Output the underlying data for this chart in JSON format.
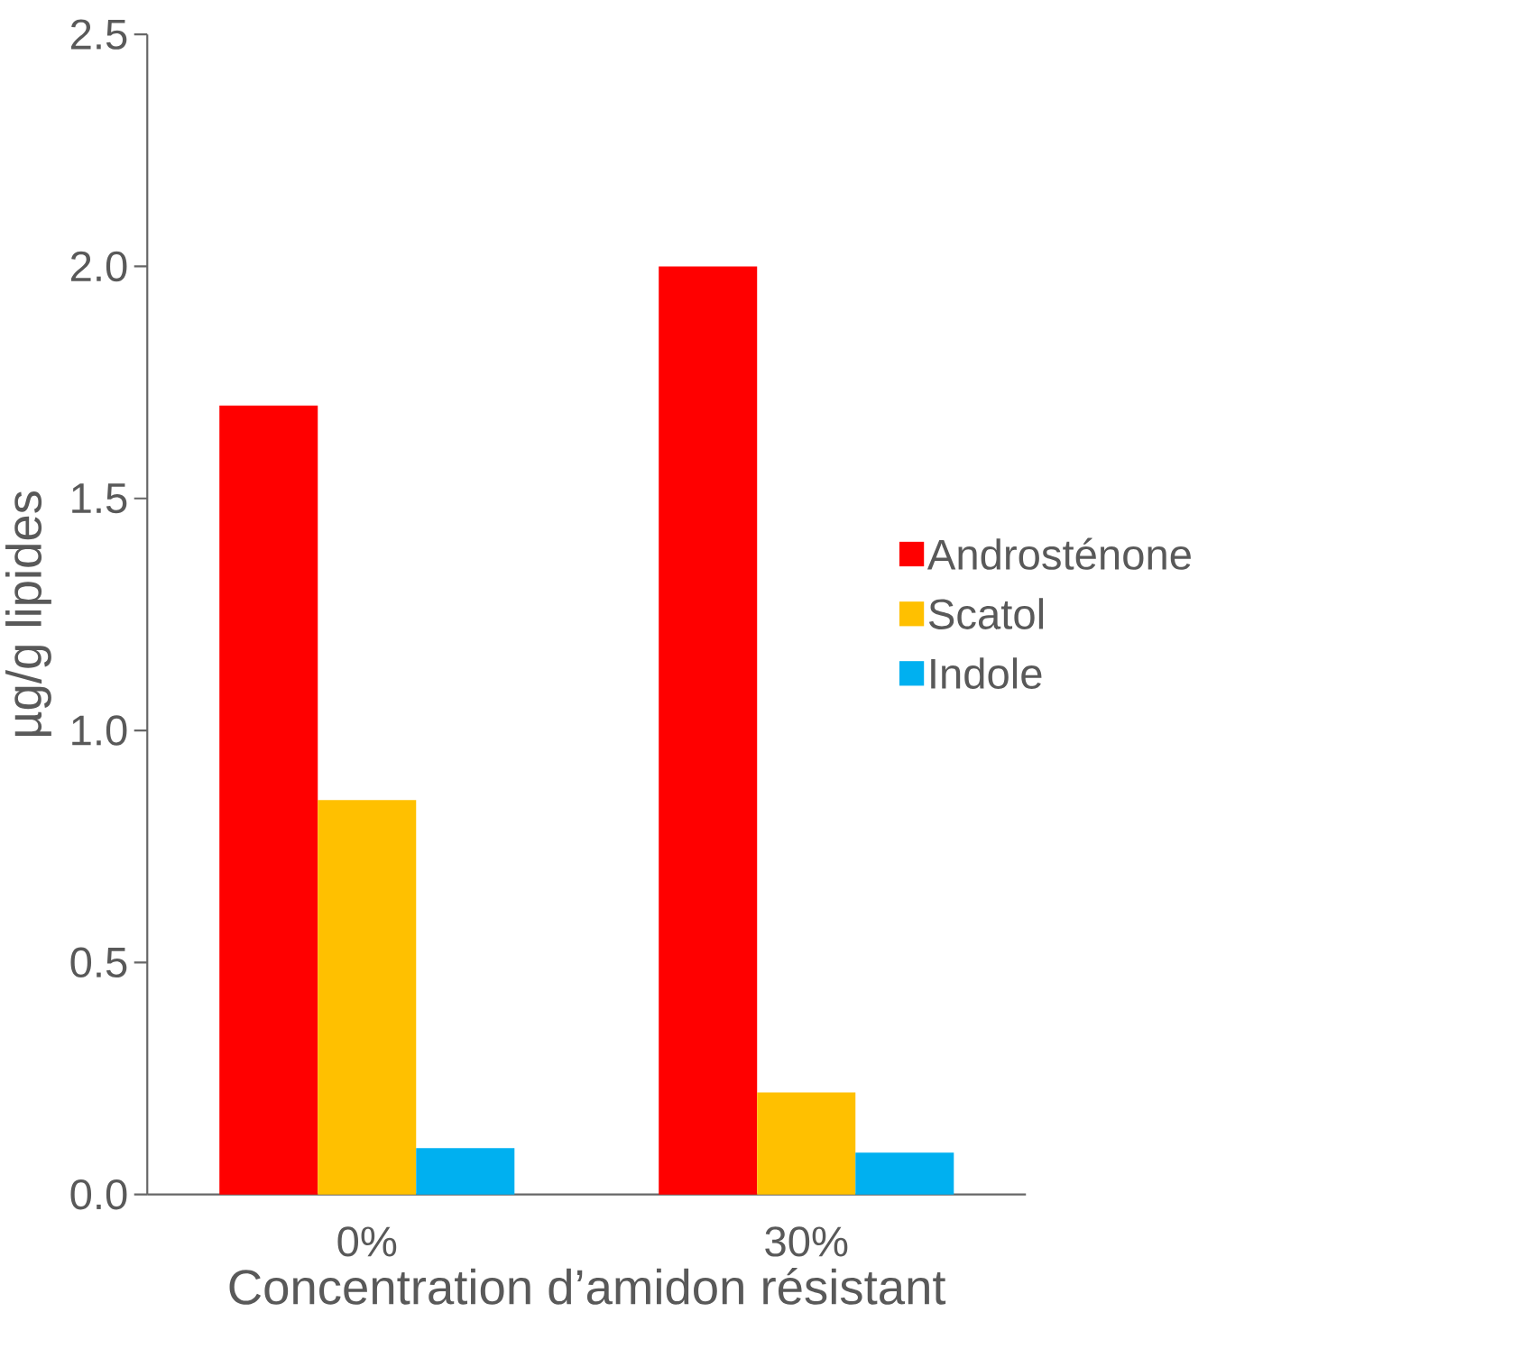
{
  "chart_data": {
    "type": "bar",
    "xlabel": "Concentration d’amidon résistant",
    "ylabel": "µg/g lipides",
    "categories": [
      "0%",
      "30%"
    ],
    "series": [
      {
        "name": "Androsténone",
        "color": "#ff0000",
        "values": [
          1.7,
          2.0
        ]
      },
      {
        "name": "Scatol",
        "color": "#ffc000",
        "values": [
          0.85,
          0.22
        ]
      },
      {
        "name": "Indole",
        "color": "#00b0f0",
        "values": [
          0.1,
          0.09
        ]
      }
    ],
    "ylim": [
      0,
      2.5
    ],
    "yticks": [
      {
        "value": 0,
        "label": "0.0"
      },
      {
        "value": 0.5,
        "label": "0.5"
      },
      {
        "value": 1,
        "label": "1.0"
      },
      {
        "value": 1.5,
        "label": "1.5"
      },
      {
        "value": 2,
        "label": "2.0"
      },
      {
        "value": 2.5,
        "label": "2.5"
      }
    ],
    "grid": false,
    "legend": "right"
  }
}
